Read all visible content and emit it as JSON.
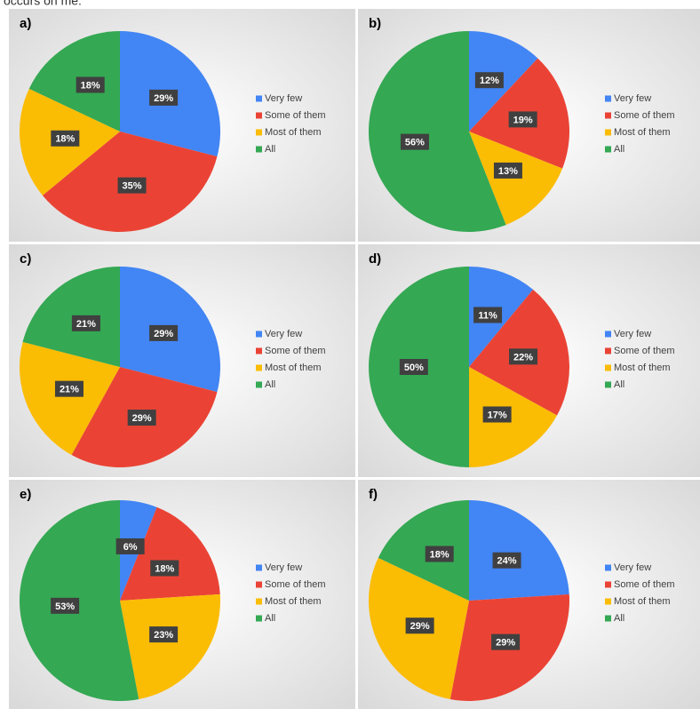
{
  "heading": "occurs on me:",
  "chart_data": [
    {
      "type": "pie",
      "title": "a)",
      "categories": [
        "Very few",
        "Some of them",
        "Most of them",
        "All"
      ],
      "values": [
        29,
        35,
        18,
        18
      ],
      "value_labels": [
        "29%",
        "35%",
        "18%",
        "18%"
      ],
      "colors": [
        "#4285f4",
        "#ea4335",
        "#fbbc04",
        "#34a853"
      ],
      "legend": "right"
    },
    {
      "type": "pie",
      "title": "b)",
      "categories": [
        "Very few",
        "Some of them",
        "Most of them",
        "All"
      ],
      "values": [
        12,
        19,
        13,
        56
      ],
      "value_labels": [
        "12%",
        "19%",
        "13%",
        "56%"
      ],
      "colors": [
        "#4285f4",
        "#ea4335",
        "#fbbc04",
        "#34a853"
      ],
      "legend": "right"
    },
    {
      "type": "pie",
      "title": "c)",
      "categories": [
        "Very few",
        "Some of them",
        "Most of them",
        "All"
      ],
      "values": [
        29,
        29,
        21,
        21
      ],
      "value_labels": [
        "29%",
        "29%",
        "21%",
        "21%"
      ],
      "colors": [
        "#4285f4",
        "#ea4335",
        "#fbbc04",
        "#34a853"
      ],
      "legend": "right"
    },
    {
      "type": "pie",
      "title": "d)",
      "categories": [
        "Very few",
        "Some of them",
        "Most of them",
        "All"
      ],
      "values": [
        11,
        22,
        17,
        50
      ],
      "value_labels": [
        "11%",
        "22%",
        "17%",
        "50%"
      ],
      "colors": [
        "#4285f4",
        "#ea4335",
        "#fbbc04",
        "#34a853"
      ],
      "legend": "right"
    },
    {
      "type": "pie",
      "title": "e)",
      "categories": [
        "Very few",
        "Some of them",
        "Most of them",
        "All"
      ],
      "values": [
        6,
        18,
        23,
        53
      ],
      "value_labels": [
        "6%",
        "18%",
        "23%",
        "53%"
      ],
      "colors": [
        "#4285f4",
        "#ea4335",
        "#fbbc04",
        "#34a853"
      ],
      "legend": "right"
    },
    {
      "type": "pie",
      "title": "f)",
      "categories": [
        "Very few",
        "Some of them",
        "Most of them",
        "All"
      ],
      "values": [
        24,
        29,
        29,
        18
      ],
      "value_labels": [
        "24%",
        "29%",
        "29%",
        "18%"
      ],
      "colors": [
        "#4285f4",
        "#ea4335",
        "#fbbc04",
        "#34a853"
      ],
      "legend": "right"
    }
  ]
}
